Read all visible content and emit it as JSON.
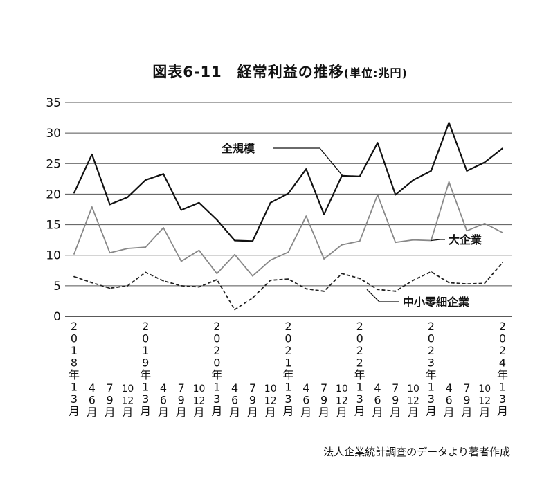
{
  "chart_data": {
    "type": "line",
    "title": "図表6-11　経常利益の推移",
    "title_unit": "(単位:兆円)",
    "source": "法人企業統計調査のデータより著者作成",
    "ylim": [
      0,
      35
    ],
    "yticks": [
      0,
      5,
      10,
      15,
      20,
      25,
      30,
      35
    ],
    "grid": true,
    "categories": [
      [
        "2",
        "0",
        "1",
        "8",
        "年",
        "1",
        "3",
        "月"
      ],
      [
        "4",
        "6",
        "月"
      ],
      [
        "7",
        "9",
        "月"
      ],
      [
        "10",
        "12",
        "月"
      ],
      [
        "2",
        "0",
        "1",
        "9",
        "年",
        "1",
        "3",
        "月"
      ],
      [
        "4",
        "6",
        "月"
      ],
      [
        "7",
        "9",
        "月"
      ],
      [
        "10",
        "12",
        "月"
      ],
      [
        "2",
        "0",
        "2",
        "0",
        "年",
        "1",
        "3",
        "月"
      ],
      [
        "4",
        "6",
        "月"
      ],
      [
        "7",
        "9",
        "月"
      ],
      [
        "10",
        "12",
        "月"
      ],
      [
        "2",
        "0",
        "2",
        "1",
        "年",
        "1",
        "3",
        "月"
      ],
      [
        "4",
        "6",
        "月"
      ],
      [
        "7",
        "9",
        "月"
      ],
      [
        "10",
        "12",
        "月"
      ],
      [
        "2",
        "0",
        "2",
        "2",
        "年",
        "1",
        "3",
        "月"
      ],
      [
        "4",
        "6",
        "月"
      ],
      [
        "7",
        "9",
        "月"
      ],
      [
        "10",
        "12",
        "月"
      ],
      [
        "2",
        "0",
        "2",
        "3",
        "年",
        "1",
        "3",
        "月"
      ],
      [
        "4",
        "6",
        "月"
      ],
      [
        "7",
        "9",
        "月"
      ],
      [
        "10",
        "12",
        "月"
      ],
      [
        "2",
        "0",
        "2",
        "4",
        "年",
        "1",
        "3",
        "月"
      ]
    ],
    "series": [
      {
        "name": "全規模",
        "color": "#111111",
        "style": "solid",
        "values": [
          20.2,
          26.5,
          18.3,
          19.5,
          22.3,
          23.3,
          17.4,
          18.6,
          15.8,
          12.4,
          12.3,
          18.6,
          20.1,
          24.1,
          16.7,
          23.0,
          22.9,
          28.4,
          19.9,
          22.3,
          23.8,
          31.7,
          23.8,
          25.2,
          27.5
        ]
      },
      {
        "name": "大企業",
        "color": "#888888",
        "style": "solid",
        "values": [
          10.2,
          17.9,
          10.4,
          11.1,
          11.3,
          14.5,
          9.0,
          10.8,
          7.0,
          10.1,
          6.6,
          9.2,
          10.5,
          16.4,
          9.4,
          11.7,
          12.3,
          19.9,
          12.1,
          12.5,
          12.4,
          22.0,
          14.0,
          15.2,
          13.7
        ]
      },
      {
        "name": "中小零細企業",
        "color": "#222222",
        "style": "dashed",
        "values": [
          6.5,
          5.5,
          4.6,
          5.0,
          7.2,
          5.8,
          5.0,
          4.8,
          6.0,
          1.1,
          3.0,
          5.9,
          6.1,
          4.5,
          4.1,
          7.0,
          6.2,
          4.4,
          4.1,
          5.9,
          7.3,
          5.5,
          5.3,
          5.4,
          8.8
        ]
      }
    ]
  }
}
